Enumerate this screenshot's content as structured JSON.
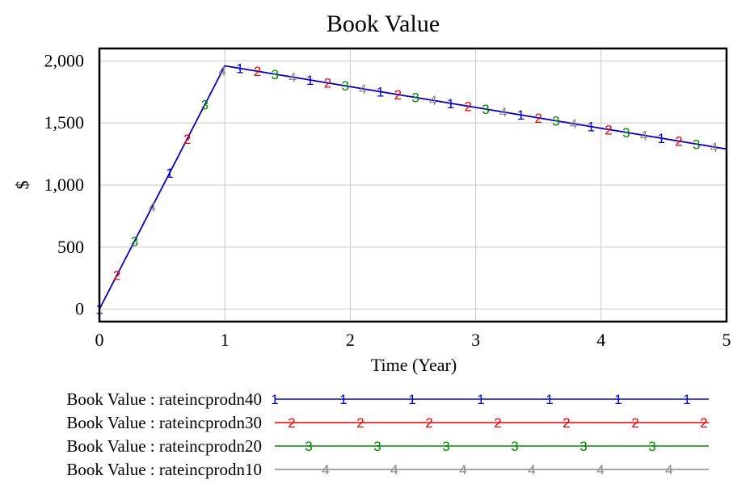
{
  "chart_data": {
    "type": "line",
    "title": "Book Value",
    "xlabel": "Time (Year)",
    "ylabel": "$",
    "xlim": [
      0,
      5
    ],
    "ylim": [
      -100,
      2100
    ],
    "x_ticks": [
      "0",
      "1",
      "2",
      "3",
      "4",
      "5"
    ],
    "y_ticks": [
      "0",
      "500",
      "1,000",
      "1,500",
      "2,000"
    ],
    "grid": true,
    "legend_position": "bottom",
    "series": [
      {
        "name": "Book Value : rateincprodn40",
        "marker": "1",
        "color": "#0000dd",
        "points": [
          [
            0,
            0
          ],
          [
            1,
            1960
          ],
          [
            5,
            1290
          ]
        ]
      },
      {
        "name": "Book Value : rateincprodn30",
        "marker": "2",
        "color": "#ee0000",
        "points": [
          [
            0,
            0
          ],
          [
            1,
            1960
          ],
          [
            5,
            1290
          ]
        ]
      },
      {
        "name": "Book Value : rateincprodn20",
        "marker": "3",
        "color": "#008800",
        "points": [
          [
            0,
            0
          ],
          [
            1,
            1960
          ],
          [
            5,
            1290
          ]
        ]
      },
      {
        "name": "Book Value : rateincprodn10",
        "marker": "4",
        "color": "#888888",
        "points": [
          [
            0,
            0
          ],
          [
            1,
            1960
          ],
          [
            5,
            1290
          ]
        ]
      }
    ]
  }
}
